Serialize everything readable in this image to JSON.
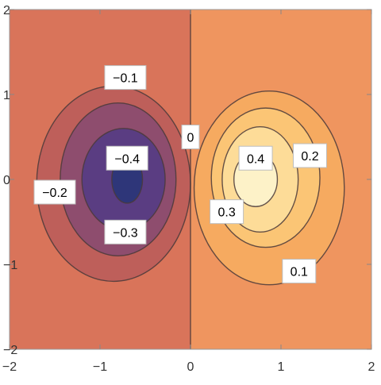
{
  "chart_data": {
    "type": "contour",
    "xlim": [
      -2,
      2
    ],
    "ylim": [
      -2,
      2
    ],
    "x_ticks": [
      -2,
      -1,
      0,
      1,
      2
    ],
    "y_ticks": [
      -2,
      -1,
      0,
      1,
      2
    ],
    "x_tick_labels": [
      "−2",
      "−1",
      "0",
      "1",
      "2"
    ],
    "y_tick_labels": [
      "−2",
      "−1",
      "0",
      "1",
      "2"
    ],
    "contour_levels": [
      -0.4,
      -0.3,
      -0.2,
      -0.1,
      0,
      0.1,
      0.2,
      0.3,
      0.4
    ],
    "contours": [
      {
        "level": 0.1,
        "center": [
          0.87,
          -0.1
        ],
        "radius": [
          0.83,
          1.14
        ],
        "label": "0.1",
        "label_at": [
          1.2,
          -1.08
        ]
      },
      {
        "level": 0.2,
        "center": [
          0.83,
          0.02
        ],
        "radius": [
          0.6,
          0.82
        ],
        "label": "0.2",
        "label_at": [
          1.32,
          0.28
        ]
      },
      {
        "level": 0.3,
        "center": [
          0.77,
          0.0
        ],
        "radius": [
          0.42,
          0.62
        ],
        "label": "0.3",
        "label_at": [
          0.4,
          -0.38
        ]
      },
      {
        "level": 0.4,
        "center": [
          0.72,
          0.0
        ],
        "radius": [
          0.24,
          0.32
        ],
        "label": "0.4",
        "label_at": [
          0.72,
          0.25
        ]
      },
      {
        "level": -0.1,
        "center": [
          -0.85,
          -0.05
        ],
        "radius": [
          0.85,
          1.15
        ],
        "label": "−0.1",
        "label_at": [
          -0.72,
          1.2
        ]
      },
      {
        "level": -0.2,
        "center": [
          -0.8,
          0.0
        ],
        "radius": [
          0.64,
          0.9
        ],
        "label": "−0.2",
        "label_at": [
          -1.5,
          -0.15
        ]
      },
      {
        "level": -0.3,
        "center": [
          -0.74,
          0.0
        ],
        "radius": [
          0.46,
          0.6
        ],
        "label": "−0.3",
        "label_at": [
          -0.72,
          -0.62
        ]
      },
      {
        "level": -0.4,
        "center": [
          -0.7,
          0.0
        ],
        "radius": [
          0.17,
          0.28
        ],
        "label": "−0.4",
        "label_at": [
          -0.7,
          0.25
        ]
      },
      {
        "level": 0,
        "label": "0",
        "label_at": [
          0.0,
          0.5
        ]
      }
    ],
    "colors": {
      "background_negative": "#d9745a",
      "background_positive": "#ef955f",
      "level_0.1": "#f6aa60",
      "level_0.2": "#fbc575",
      "level_0.3": "#fddc98",
      "level_0.4": "#fdf2c8",
      "level_-0.1": "#be5f5a",
      "level_-0.2": "#8e4d6e",
      "level_-0.3": "#5a3d82",
      "level_-0.4": "#2e3679",
      "frame": "#999999",
      "contour_line": "#4a3a3a"
    }
  }
}
